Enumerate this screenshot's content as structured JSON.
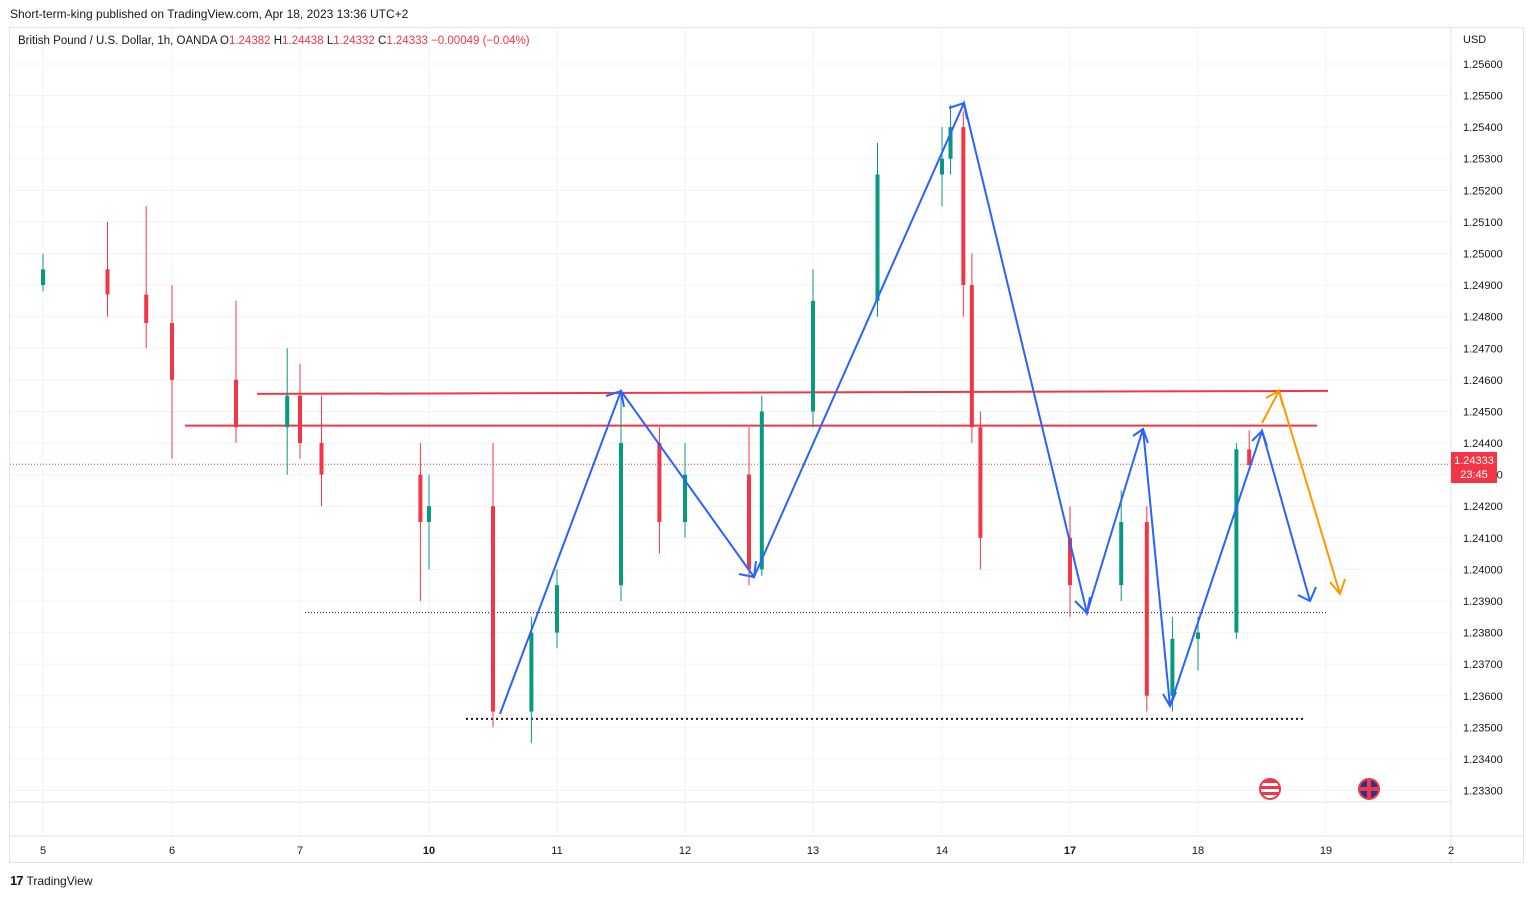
{
  "publisher_line": "Short-term-king published on TradingView.com, Apr 18, 2023 13:36 UTC+2",
  "legend": {
    "symbol": "British Pound / U.S. Dollar, 1h, OANDA",
    "o_label": "O",
    "o_value": "1.24382",
    "h_label": "H",
    "h_value": "1.24438",
    "l_label": "L",
    "l_value": "1.24332",
    "c_label": "C",
    "c_value": "1.24333",
    "change": "−0.00049 (−0.04%)"
  },
  "currency": "USD",
  "last_price": {
    "value": "1.24333",
    "countdown": "23:45"
  },
  "footer_brand": "TradingView",
  "colors": {
    "up": "#089981",
    "down": "#f23645",
    "pattern": "#2962ff",
    "projection": "#ff9800",
    "grid": "#f0f3fa"
  },
  "flags": [
    "us-flag-icon",
    "gb-flag-icon"
  ],
  "chart_data": {
    "type": "candlestick",
    "x_axis_labels": [
      "5",
      "6",
      "7",
      "10",
      "11",
      "12",
      "13",
      "14",
      "17",
      "18",
      "19",
      "2"
    ],
    "y_tick_labels": [
      "1.25600",
      "1.25500",
      "1.25400",
      "1.25300",
      "1.25200",
      "1.25100",
      "1.25000",
      "1.24900",
      "1.24800",
      "1.24700",
      "1.24600",
      "1.24500",
      "1.24400",
      "1.24300",
      "1.24200",
      "1.24100",
      "1.24000",
      "1.23900",
      "1.23800",
      "1.23700",
      "1.23600",
      "1.23500",
      "1.23400",
      "1.23300"
    ],
    "ylim": [
      1.2327,
      1.2566
    ],
    "grid": true,
    "candles": [
      {
        "day": 5,
        "o": 1.249,
        "h": 1.25,
        "l": 1.2488,
        "c": 1.2495
      },
      {
        "day": 5.5,
        "o": 1.2495,
        "h": 1.251,
        "l": 1.248,
        "c": 1.2487
      },
      {
        "day": 5.8,
        "o": 1.2487,
        "h": 1.2515,
        "l": 1.247,
        "c": 1.2478
      },
      {
        "day": 6,
        "o": 1.2478,
        "h": 1.249,
        "l": 1.2435,
        "c": 1.246
      },
      {
        "day": 6.5,
        "o": 1.246,
        "h": 1.2485,
        "l": 1.244,
        "c": 1.2445
      },
      {
        "day": 6.9,
        "o": 1.2445,
        "h": 1.247,
        "l": 1.243,
        "c": 1.2455
      },
      {
        "day": 7,
        "o": 1.2455,
        "h": 1.2465,
        "l": 1.2435,
        "c": 1.244
      },
      {
        "day": 7.5,
        "o": 1.244,
        "h": 1.2455,
        "l": 1.242,
        "c": 1.243
      },
      {
        "day": 9.8,
        "o": 1.243,
        "h": 1.244,
        "l": 1.239,
        "c": 1.2415
      },
      {
        "day": 10,
        "o": 1.2415,
        "h": 1.243,
        "l": 1.24,
        "c": 1.242
      },
      {
        "day": 10.5,
        "o": 1.242,
        "h": 1.244,
        "l": 1.235,
        "c": 1.2355
      },
      {
        "day": 10.8,
        "o": 1.2355,
        "h": 1.2385,
        "l": 1.2345,
        "c": 1.238
      },
      {
        "day": 11,
        "o": 1.238,
        "h": 1.24,
        "l": 1.2375,
        "c": 1.2395
      },
      {
        "day": 11.5,
        "o": 1.2395,
        "h": 1.2455,
        "l": 1.239,
        "c": 1.244
      },
      {
        "day": 11.8,
        "o": 1.244,
        "h": 1.2445,
        "l": 1.2405,
        "c": 1.2415
      },
      {
        "day": 12,
        "o": 1.2415,
        "h": 1.244,
        "l": 1.241,
        "c": 1.243
      },
      {
        "day": 12.5,
        "o": 1.243,
        "h": 1.2445,
        "l": 1.2395,
        "c": 1.24
      },
      {
        "day": 12.6,
        "o": 1.24,
        "h": 1.2455,
        "l": 1.2398,
        "c": 1.245
      },
      {
        "day": 13,
        "o": 1.245,
        "h": 1.2495,
        "l": 1.2445,
        "c": 1.2485
      },
      {
        "day": 13.5,
        "o": 1.2485,
        "h": 1.2535,
        "l": 1.248,
        "c": 1.2525
      },
      {
        "day": 14,
        "o": 1.2525,
        "h": 1.254,
        "l": 1.2515,
        "c": 1.253
      },
      {
        "day": 14.2,
        "o": 1.253,
        "h": 1.2547,
        "l": 1.2525,
        "c": 1.254
      },
      {
        "day": 14.5,
        "o": 1.254,
        "h": 1.2545,
        "l": 1.248,
        "c": 1.249
      },
      {
        "day": 14.7,
        "o": 1.249,
        "h": 1.25,
        "l": 1.244,
        "c": 1.2445
      },
      {
        "day": 14.9,
        "o": 1.2445,
        "h": 1.245,
        "l": 1.24,
        "c": 1.241
      },
      {
        "day": 17,
        "o": 1.241,
        "h": 1.242,
        "l": 1.2385,
        "c": 1.2395
      },
      {
        "day": 17.4,
        "o": 1.2395,
        "h": 1.2425,
        "l": 1.239,
        "c": 1.2415
      },
      {
        "day": 17.6,
        "o": 1.2415,
        "h": 1.242,
        "l": 1.2355,
        "c": 1.236
      },
      {
        "day": 17.8,
        "o": 1.236,
        "h": 1.2385,
        "l": 1.2355,
        "c": 1.2378
      },
      {
        "day": 18,
        "o": 1.2378,
        "h": 1.2385,
        "l": 1.2368,
        "c": 1.238
      },
      {
        "day": 18.3,
        "o": 1.238,
        "h": 1.244,
        "l": 1.2378,
        "c": 1.2438
      },
      {
        "day": 18.4,
        "o": 1.2438,
        "h": 1.2444,
        "l": 1.2433,
        "c": 1.2433
      }
    ],
    "resistance_lines": [
      1.24565,
      1.24455
    ],
    "support_lines": [
      1.23863,
      1.23527
    ],
    "current_price": 1.24333
  }
}
